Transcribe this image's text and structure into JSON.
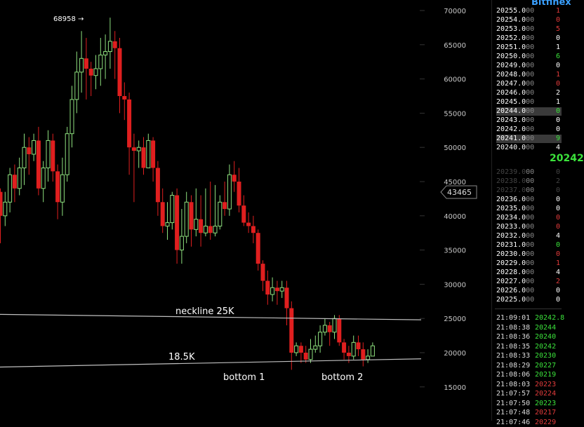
{
  "chart_data": {
    "type": "candlestick",
    "title": "",
    "ylim": [
      12000,
      73000
    ],
    "y_ticks": [
      15000,
      20000,
      25000,
      30000,
      35000,
      40000,
      45000,
      50000,
      55000,
      60000,
      65000,
      70000
    ],
    "price_marker": "43465",
    "peak_label": "68958 →",
    "candles": [
      [
        43500,
        40000,
        44000,
        36000
      ],
      [
        40000,
        42000,
        43500,
        38500
      ],
      [
        42000,
        46000,
        47000,
        40500
      ],
      [
        46000,
        44000,
        47500,
        42000
      ],
      [
        44000,
        47000,
        48500,
        43000
      ],
      [
        47000,
        50000,
        52000,
        44500
      ],
      [
        50000,
        49000,
        51500,
        46000
      ],
      [
        49000,
        51000,
        52000,
        48000
      ],
      [
        51000,
        44000,
        53000,
        43000
      ],
      [
        44000,
        47000,
        48000,
        42000
      ],
      [
        47000,
        51000,
        52500,
        45000
      ],
      [
        51000,
        46500,
        52000,
        45000
      ],
      [
        46500,
        42000,
        47500,
        39500
      ],
      [
        42000,
        46000,
        48500,
        40000
      ],
      [
        46000,
        52000,
        53000,
        45000
      ],
      [
        52000,
        57000,
        59000,
        50000
      ],
      [
        57000,
        61000,
        64000,
        55000
      ],
      [
        61000,
        63000,
        67000,
        58000
      ],
      [
        63000,
        61500,
        66000,
        57000
      ],
      [
        61500,
        60500,
        62500,
        57500
      ],
      [
        60500,
        61500,
        63500,
        58500
      ],
      [
        61500,
        63500,
        66000,
        59000
      ],
      [
        63500,
        64000,
        66500,
        60000
      ],
      [
        64000,
        65500,
        68958,
        61500
      ],
      [
        65500,
        64500,
        67000,
        60000
      ],
      [
        64500,
        57500,
        66000,
        55000
      ],
      [
        57500,
        57000,
        59500,
        54000
      ],
      [
        57000,
        50000,
        58000,
        46000
      ],
      [
        50000,
        49500,
        52000,
        42000
      ],
      [
        49500,
        50000,
        51000,
        47000
      ],
      [
        50000,
        47000,
        51500,
        46000
      ],
      [
        47000,
        51000,
        52000,
        49500
      ],
      [
        51000,
        47000,
        51500,
        45000
      ],
      [
        47000,
        42000,
        48000,
        40000
      ],
      [
        42000,
        38500,
        44000,
        37500
      ],
      [
        38500,
        39000,
        42000,
        36500
      ],
      [
        39000,
        43000,
        43500,
        38000
      ],
      [
        43000,
        35000,
        44000,
        33000
      ],
      [
        35000,
        37000,
        41000,
        33000
      ],
      [
        37000,
        42000,
        43500,
        36000
      ],
      [
        42000,
        38000,
        43000,
        35500
      ],
      [
        38000,
        39500,
        44000,
        37000
      ],
      [
        39500,
        37500,
        43000,
        35500
      ],
      [
        37500,
        38500,
        44000,
        37000
      ],
      [
        38500,
        37500,
        45000,
        36500
      ],
      [
        37500,
        38500,
        44500,
        37000
      ],
      [
        38500,
        42000,
        43000,
        38000
      ],
      [
        42000,
        41000,
        45000,
        40000
      ],
      [
        41000,
        46000,
        47500,
        40000
      ],
      [
        46000,
        45000,
        48000,
        43500
      ],
      [
        45000,
        41500,
        47000,
        40500
      ],
      [
        41500,
        39000,
        43000,
        38500
      ],
      [
        39000,
        38500,
        40500,
        37500
      ],
      [
        38500,
        37500,
        40000,
        36000
      ],
      [
        37500,
        33000,
        38000,
        32000
      ],
      [
        33000,
        30500,
        33500,
        29000
      ],
      [
        30500,
        28500,
        32000,
        27000
      ],
      [
        28500,
        29500,
        31000,
        27500
      ],
      [
        29500,
        29000,
        30500,
        27000
      ],
      [
        29000,
        29500,
        30500,
        28000
      ],
      [
        29500,
        26500,
        30500,
        24000
      ],
      [
        26500,
        20000,
        27500,
        17500
      ],
      [
        20000,
        21000,
        21500,
        19500
      ],
      [
        21000,
        20000,
        21500,
        18500
      ],
      [
        20000,
        19000,
        21000,
        18500
      ],
      [
        19000,
        20500,
        22000,
        18500
      ],
      [
        20500,
        21000,
        22500,
        20000
      ],
      [
        21000,
        23000,
        24000,
        20000
      ],
      [
        23000,
        24000,
        25000,
        22500
      ],
      [
        24000,
        23000,
        24500,
        21000
      ],
      [
        23000,
        25000,
        25500,
        22000
      ],
      [
        25000,
        21500,
        25500,
        21000
      ],
      [
        21500,
        20000,
        22000,
        19000
      ],
      [
        20000,
        19500,
        21000,
        18500
      ],
      [
        19500,
        21500,
        22500,
        19000
      ],
      [
        21500,
        20500,
        22500,
        19500
      ],
      [
        20500,
        19000,
        21500,
        18000
      ],
      [
        19000,
        19500,
        20500,
        18500
      ],
      [
        19500,
        21000,
        21500,
        19500
      ]
    ],
    "lines": [
      {
        "label": "neckline 25K",
        "y_start": 25600,
        "y_end": 24800
      },
      {
        "label": "18.5K",
        "y_start": 17900,
        "y_end": 19100
      }
    ],
    "annotations": [
      "bottom 1",
      "bottom 2"
    ]
  },
  "orderbook": {
    "title": "Bitfinex",
    "asks": [
      {
        "price": "20255.0",
        "dec": "00",
        "amount": "1",
        "color": "#e23b3b"
      },
      {
        "price": "20254.0",
        "dec": "00",
        "amount": "0",
        "color": "#e23b3b"
      },
      {
        "price": "20253.0",
        "dec": "00",
        "amount": "5",
        "color": "#e23b3b"
      },
      {
        "price": "20252.0",
        "dec": "00",
        "amount": "0",
        "color": "#ffffff"
      },
      {
        "price": "20251.0",
        "dec": "00",
        "amount": "1",
        "color": "#ffffff"
      },
      {
        "price": "20250.0",
        "dec": "00",
        "amount": "6",
        "color": "#3be33b"
      },
      {
        "price": "20249.0",
        "dec": "00",
        "amount": "0",
        "color": "#ffffff"
      },
      {
        "price": "20248.0",
        "dec": "00",
        "amount": "1",
        "color": "#e23b3b"
      },
      {
        "price": "20247.0",
        "dec": "00",
        "amount": "0",
        "color": "#e23b3b"
      },
      {
        "price": "20246.0",
        "dec": "00",
        "amount": "2",
        "color": "#ffffff"
      },
      {
        "price": "20245.0",
        "dec": "00",
        "amount": "1",
        "color": "#ffffff"
      },
      {
        "price": "20244.0",
        "dec": "00",
        "amount": "0",
        "color": "#3be33b"
      },
      {
        "price": "20243.0",
        "dec": "00",
        "amount": "0",
        "color": "#ffffff"
      },
      {
        "price": "20242.0",
        "dec": "00",
        "amount": "0",
        "color": "#ffffff"
      },
      {
        "price": "20241.0",
        "dec": "00",
        "amount": "9",
        "color": "#3be33b"
      },
      {
        "price": "20240.0",
        "dec": "00",
        "amount": "4",
        "color": "#ffffff"
      }
    ],
    "last_price": "20242",
    "bids": [
      {
        "price": "20239.0",
        "dec": "00",
        "amount": "0",
        "color": "#444444"
      },
      {
        "price": "20238.0",
        "dec": "00",
        "amount": "2",
        "color": "#444444"
      },
      {
        "price": "20237.0",
        "dec": "00",
        "amount": "0",
        "color": "#444444"
      },
      {
        "price": "20236.0",
        "dec": "00",
        "amount": "0",
        "color": "#ffffff"
      },
      {
        "price": "20235.0",
        "dec": "00",
        "amount": "0",
        "color": "#ffffff"
      },
      {
        "price": "20234.0",
        "dec": "00",
        "amount": "0",
        "color": "#e23b3b"
      },
      {
        "price": "20233.0",
        "dec": "00",
        "amount": "0",
        "color": "#e23b3b"
      },
      {
        "price": "20232.0",
        "dec": "00",
        "amount": "4",
        "color": "#ffffff"
      },
      {
        "price": "20231.0",
        "dec": "00",
        "amount": "0",
        "color": "#3be33b"
      },
      {
        "price": "20230.0",
        "dec": "00",
        "amount": "0",
        "color": "#e23b3b"
      },
      {
        "price": "20229.0",
        "dec": "00",
        "amount": "1",
        "color": "#e23b3b"
      },
      {
        "price": "20228.0",
        "dec": "00",
        "amount": "4",
        "color": "#ffffff"
      },
      {
        "price": "20227.0",
        "dec": "00",
        "amount": "2",
        "color": "#e23b3b"
      },
      {
        "price": "20226.0",
        "dec": "00",
        "amount": "0",
        "color": "#ffffff"
      },
      {
        "price": "20225.0",
        "dec": "00",
        "amount": "0",
        "color": "#ffffff"
      }
    ],
    "trades": [
      {
        "time": "21:09:01",
        "price": "20242.8",
        "color": "#3be33b"
      },
      {
        "time": "21:08:38",
        "price": "20244",
        "color": "#3be33b"
      },
      {
        "time": "21:08:36",
        "price": "20240",
        "color": "#3be33b"
      },
      {
        "time": "21:08:35",
        "price": "20242",
        "color": "#3be33b"
      },
      {
        "time": "21:08:33",
        "price": "20230",
        "color": "#3be33b"
      },
      {
        "time": "21:08:29",
        "price": "20227",
        "color": "#3be33b"
      },
      {
        "time": "21:08:06",
        "price": "20219",
        "color": "#3be33b"
      },
      {
        "time": "21:08:03",
        "price": "20223",
        "color": "#e23b3b"
      },
      {
        "time": "21:07:57",
        "price": "20224",
        "color": "#e23b3b"
      },
      {
        "time": "21:07:50",
        "price": "20223",
        "color": "#3be33b"
      },
      {
        "time": "21:07:48",
        "price": "20217",
        "color": "#e23b3b"
      },
      {
        "time": "21:07:46",
        "price": "20229",
        "color": "#e23b3b"
      }
    ]
  }
}
